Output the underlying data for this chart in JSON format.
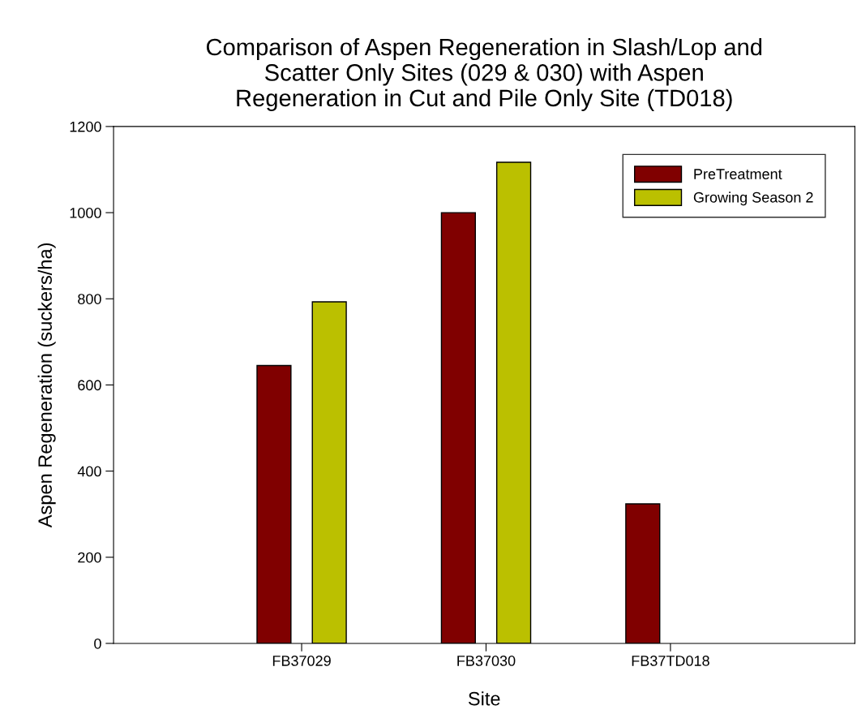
{
  "chart_data": {
    "type": "bar",
    "title": "Comparison of Aspen Regeneration in Slash/Lop and\nScatter Only Sites (029 & 030) with Aspen\nRegeneration in Cut and Pile Only Site (TD018)",
    "xlabel": "Site",
    "ylabel": "Aspen Regeneration (suckers/ha)",
    "categories": [
      "FB37029",
      "FB37030",
      "FB37TD018"
    ],
    "series": [
      {
        "name": "PreTreatment",
        "color": "#800000",
        "values": [
          645,
          1000,
          324
        ]
      },
      {
        "name": "Growing Season 2",
        "color": "#bbc000",
        "values": [
          793,
          1117,
          null
        ]
      }
    ],
    "ylim": [
      0,
      1200
    ],
    "yticks": [
      0,
      200,
      400,
      600,
      800,
      1000,
      1200
    ],
    "grid": false,
    "legend": "top right"
  }
}
